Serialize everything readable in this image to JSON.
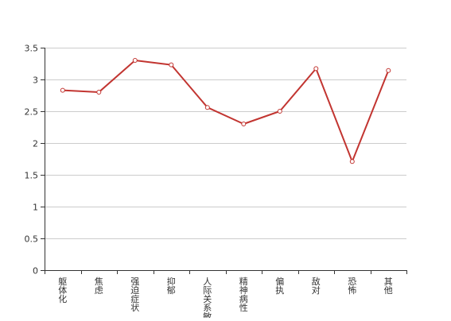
{
  "chart_data": {
    "type": "line",
    "title": "",
    "xlabel": "",
    "ylabel": "",
    "categories": [
      "躯体化",
      "焦虑",
      "强迫症状",
      "抑郁",
      "人际关系敏感",
      "精神病性",
      "偏执",
      "敌对",
      "恐怖",
      "其他"
    ],
    "series": [
      {
        "values": [
          2.83,
          2.8,
          3.3,
          3.23,
          2.56,
          2.3,
          2.5,
          3.17,
          1.71,
          3.14
        ]
      }
    ],
    "ylim": [
      0,
      3.5
    ],
    "yticks": [
      "0",
      "0.5",
      "1",
      "1.5",
      "2",
      "2.5",
      "3",
      "3.5"
    ],
    "grid": true,
    "legend": "none",
    "colors": {
      "line": "#c23531",
      "marker_fill": "#ffffff",
      "grid": "#cccccc",
      "axis": "#333333",
      "text": "#333333"
    }
  }
}
